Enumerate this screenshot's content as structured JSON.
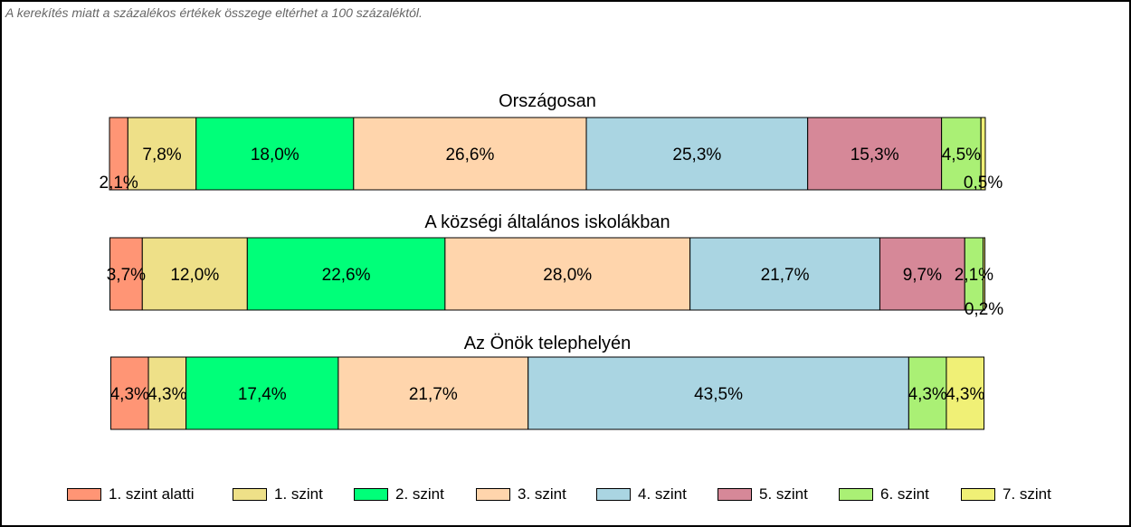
{
  "note": "A kerekítés miatt a  százalékos értékek összege eltérhet a 100 százaléktól.",
  "chart_data": {
    "type": "bar",
    "orientation": "horizontal",
    "stacked": true,
    "unit": "%",
    "series_names": [
      "1. szint alatti",
      "1. szint",
      "2. szint",
      "3. szint",
      "4. szint",
      "5. szint",
      "6. szint",
      "7. szint"
    ],
    "colors": [
      "#FF9575",
      "#EEE088",
      "#00FF79",
      "#FFD5AC",
      "#AAD5E2",
      "#D68898",
      "#AAF075",
      "#F0F076"
    ],
    "categories": [
      "Országosan",
      "A községi általános iskolákban",
      "Az Önök telephelyén"
    ],
    "values": [
      [
        2.1,
        7.8,
        18.0,
        26.6,
        25.3,
        15.3,
        4.5,
        0.5
      ],
      [
        3.7,
        12.0,
        22.6,
        28.0,
        21.7,
        9.7,
        2.1,
        0.2
      ],
      [
        4.3,
        4.3,
        17.4,
        21.7,
        43.5,
        0.0,
        4.3,
        4.3
      ]
    ],
    "labels": [
      [
        "2,1%",
        "7,8%",
        "18,0%",
        "26,6%",
        "25,3%",
        "15,3%",
        "4,5%",
        "0,5%"
      ],
      [
        "3,7%",
        "12,0%",
        "22,6%",
        "28,0%",
        "21,7%",
        "9,7%",
        "2,1%",
        "0,2%"
      ],
      [
        "4,3%",
        "4,3%",
        "17,4%",
        "21,7%",
        "43,5%",
        "",
        "4,3%",
        "4,3%"
      ]
    ],
    "legend_position": "bottom"
  }
}
